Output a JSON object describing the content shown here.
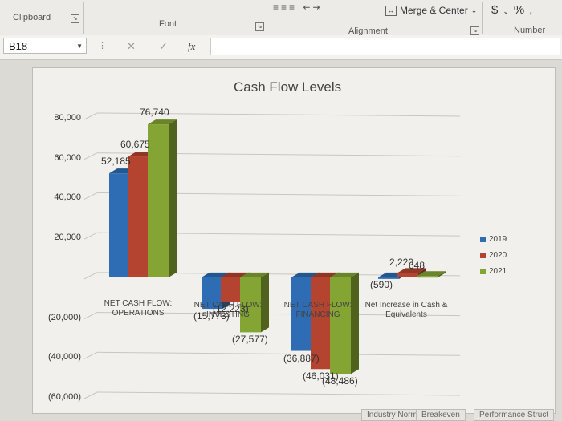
{
  "ribbon": {
    "clipboard_label": "Clipboard",
    "font_label": "Font",
    "alignment_label": "Alignment",
    "number_label": "Number",
    "merge_center_label": "Merge & Center",
    "currency_symbol": "$",
    "percent_symbol": "%",
    "comma_symbol": ","
  },
  "formula_bar": {
    "name_box": "B18",
    "cancel_icon": "✕",
    "enter_icon": "✓",
    "fx_label": "fx",
    "formula": ""
  },
  "chart_data": {
    "type": "bar",
    "title": "Cash Flow Levels",
    "categories": [
      "NET CASH FLOW: OPERATIONS",
      "NET CASH FLOW: INVESTING",
      "NET CASH FLOW: FINANCING",
      "Net Increase in Cash & Equivalents"
    ],
    "series": [
      {
        "name": "2019",
        "color": "#2e6db3",
        "values": [
          52185,
          -15773,
          -36887,
          -590
        ]
      },
      {
        "name": "2020",
        "color": "#b4432f",
        "values": [
          60675,
          -12223,
          -46031,
          2220
        ]
      },
      {
        "name": "2021",
        "color": "#84a534",
        "values": [
          76740,
          -27577,
          -48486,
          648
        ]
      }
    ],
    "data_labels": [
      [
        "52,185",
        "(15,773)",
        "(36,887)",
        "(590)"
      ],
      [
        "60,675",
        "(12,223)",
        "(46,031)",
        "2,220"
      ],
      [
        "76,740",
        "(27,577)",
        "(48,486)",
        "648"
      ]
    ],
    "yticks": [
      "80,000",
      "60,000",
      "40,000",
      "20,000",
      "",
      "(20,000)",
      "(40,000)",
      "(60,000)"
    ],
    "ylim": [
      -60000,
      80000
    ],
    "grid": true,
    "legend_position": "right"
  },
  "sheet_tabs": [
    "Industry Norms",
    "Breakeven",
    "Performance Struct"
  ]
}
